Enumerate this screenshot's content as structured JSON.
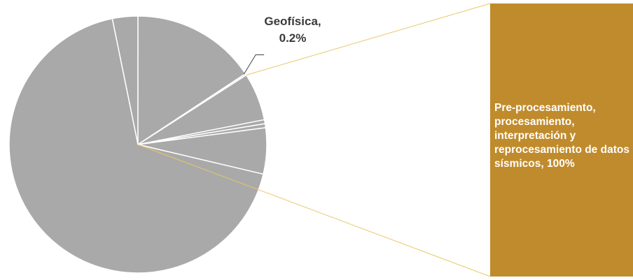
{
  "chart_data": {
    "type": "pie",
    "values": [
      3.2,
      15.7,
      0.2,
      6.0,
      0.5,
      0.5,
      5.8,
      68.1
    ],
    "labels": [
      null,
      null,
      "Geofísica, 0.2%",
      null,
      null,
      null,
      null,
      null
    ],
    "colors": [
      "#a9a9a9",
      "#a9a9a9",
      "#e4e4e4",
      "#a9a9a9",
      "#a9a9a9",
      "#a9a9a9",
      "#a9a9a9",
      "#a9a9a9"
    ],
    "bar": {
      "labels": [
        "Pre-procesamiento, procesamiento, interpretación y reprocesamiento de datos sísmicos, 100%"
      ],
      "values": [
        100
      ],
      "color": "#c08b2c"
    }
  }
}
